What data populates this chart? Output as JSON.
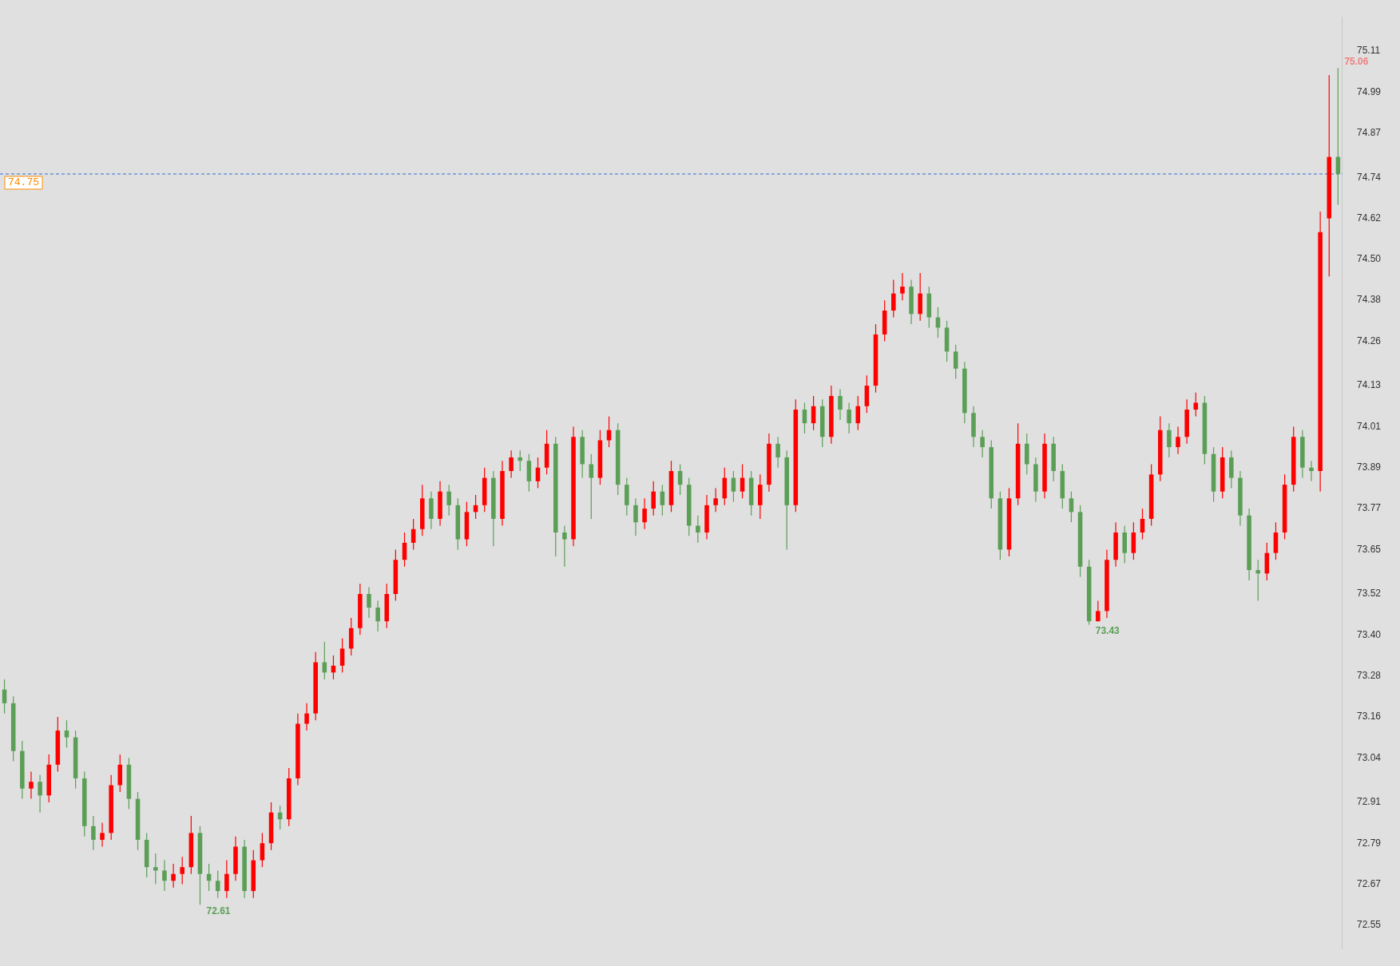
{
  "chart_data": {
    "type": "candlestick",
    "categories": [
      null,
      null,
      null,
      null,
      null,
      null,
      null,
      null,
      null,
      null,
      null,
      null,
      null,
      null,
      null,
      null,
      null,
      null,
      null,
      null,
      null,
      null,
      null,
      null,
      null,
      null,
      null,
      null,
      null,
      null,
      null,
      null,
      null,
      null,
      null,
      null,
      null,
      null,
      null,
      null,
      null,
      null,
      null,
      null,
      null,
      null,
      null,
      null,
      null,
      null,
      null,
      null,
      null,
      null,
      null,
      null,
      null,
      null,
      null,
      null,
      null,
      null,
      null,
      null,
      null,
      null,
      null,
      null,
      null,
      null,
      null,
      null,
      null,
      null,
      null,
      null,
      null,
      null,
      null,
      null,
      null,
      null,
      null,
      null,
      null,
      null,
      null,
      null,
      null,
      null,
      null,
      null,
      null,
      null,
      null,
      null,
      null,
      null,
      null,
      null,
      null,
      null,
      null,
      null,
      null,
      null,
      null,
      null,
      null,
      null,
      null,
      null,
      null,
      null,
      null,
      null,
      null,
      null,
      null,
      null,
      null,
      null,
      null,
      null,
      null,
      null,
      null,
      null,
      null,
      null,
      null,
      null,
      null,
      null,
      null,
      null,
      null,
      null,
      null,
      null,
      null,
      null,
      null,
      null,
      null,
      null,
      null,
      null,
      null,
      null,
      null
    ],
    "ohlc": [
      [
        73.24,
        73.27,
        73.17,
        73.2
      ],
      [
        73.2,
        73.22,
        73.03,
        73.06
      ],
      [
        73.06,
        73.09,
        72.92,
        72.95
      ],
      [
        72.95,
        73.0,
        72.92,
        72.97
      ],
      [
        72.97,
        72.99,
        72.88,
        72.93
      ],
      [
        72.93,
        73.05,
        72.91,
        73.02
      ],
      [
        73.02,
        73.16,
        73.0,
        73.12
      ],
      [
        73.12,
        73.15,
        73.07,
        73.1
      ],
      [
        73.1,
        73.12,
        72.95,
        72.98
      ],
      [
        72.98,
        73.0,
        72.81,
        72.84
      ],
      [
        72.84,
        72.87,
        72.77,
        72.8
      ],
      [
        72.8,
        72.85,
        72.78,
        72.82
      ],
      [
        72.82,
        72.99,
        72.8,
        72.96
      ],
      [
        72.96,
        73.05,
        72.94,
        73.02
      ],
      [
        73.02,
        73.04,
        72.89,
        72.92
      ],
      [
        72.92,
        72.94,
        72.77,
        72.8
      ],
      [
        72.8,
        72.82,
        72.69,
        72.72
      ],
      [
        72.72,
        72.76,
        72.67,
        72.71
      ],
      [
        72.71,
        72.74,
        72.65,
        72.68
      ],
      [
        72.68,
        72.73,
        72.66,
        72.7
      ],
      [
        72.7,
        72.75,
        72.67,
        72.72
      ],
      [
        72.72,
        72.87,
        72.7,
        72.82
      ],
      [
        72.82,
        72.84,
        72.61,
        72.7
      ],
      [
        72.7,
        72.73,
        72.65,
        72.68
      ],
      [
        72.68,
        72.71,
        72.63,
        72.65
      ],
      [
        72.65,
        72.74,
        72.63,
        72.7
      ],
      [
        72.7,
        72.81,
        72.68,
        72.78
      ],
      [
        72.78,
        72.8,
        72.63,
        72.65
      ],
      [
        72.65,
        72.77,
        72.63,
        72.74
      ],
      [
        72.74,
        72.82,
        72.72,
        72.79
      ],
      [
        72.79,
        72.91,
        72.77,
        72.88
      ],
      [
        72.88,
        72.9,
        72.83,
        72.86
      ],
      [
        72.86,
        73.01,
        72.84,
        72.98
      ],
      [
        72.98,
        73.17,
        72.96,
        73.14
      ],
      [
        73.14,
        73.2,
        73.12,
        73.17
      ],
      [
        73.17,
        73.35,
        73.15,
        73.32
      ],
      [
        73.32,
        73.38,
        73.27,
        73.29
      ],
      [
        73.29,
        73.34,
        73.27,
        73.31
      ],
      [
        73.31,
        73.39,
        73.29,
        73.36
      ],
      [
        73.36,
        73.45,
        73.34,
        73.42
      ],
      [
        73.42,
        73.55,
        73.4,
        73.52
      ],
      [
        73.52,
        73.54,
        73.45,
        73.48
      ],
      [
        73.48,
        73.5,
        73.41,
        73.44
      ],
      [
        73.44,
        73.55,
        73.42,
        73.52
      ],
      [
        73.52,
        73.65,
        73.5,
        73.62
      ],
      [
        73.62,
        73.7,
        73.6,
        73.67
      ],
      [
        73.67,
        73.74,
        73.65,
        73.71
      ],
      [
        73.71,
        73.84,
        73.69,
        73.8
      ],
      [
        73.8,
        73.82,
        73.71,
        73.74
      ],
      [
        73.74,
        73.85,
        73.72,
        73.82
      ],
      [
        73.82,
        73.84,
        73.75,
        73.78
      ],
      [
        73.78,
        73.8,
        73.65,
        73.68
      ],
      [
        73.68,
        73.79,
        73.66,
        73.76
      ],
      [
        73.76,
        73.81,
        73.74,
        73.78
      ],
      [
        73.78,
        73.89,
        73.76,
        73.86
      ],
      [
        73.86,
        73.88,
        73.66,
        73.74
      ],
      [
        73.74,
        73.91,
        73.72,
        73.88
      ],
      [
        73.88,
        73.94,
        73.86,
        73.92
      ],
      [
        73.92,
        73.94,
        73.88,
        73.91
      ],
      [
        73.91,
        73.93,
        73.82,
        73.85
      ],
      [
        73.85,
        73.92,
        73.83,
        73.89
      ],
      [
        73.89,
        74.0,
        73.87,
        73.96
      ],
      [
        73.96,
        73.98,
        73.63,
        73.7
      ],
      [
        73.7,
        73.72,
        73.6,
        73.68
      ],
      [
        73.68,
        74.01,
        73.66,
        73.98
      ],
      [
        73.98,
        74.0,
        73.86,
        73.9
      ],
      [
        73.9,
        73.93,
        73.74,
        73.86
      ],
      [
        73.86,
        74.0,
        73.84,
        73.97
      ],
      [
        73.97,
        74.04,
        73.95,
        74.0
      ],
      [
        74.0,
        74.02,
        73.81,
        73.84
      ],
      [
        73.84,
        73.86,
        73.75,
        73.78
      ],
      [
        73.78,
        73.8,
        73.69,
        73.73
      ],
      [
        73.73,
        73.8,
        73.71,
        73.77
      ],
      [
        73.77,
        73.85,
        73.75,
        73.82
      ],
      [
        73.82,
        73.84,
        73.75,
        73.78
      ],
      [
        73.78,
        73.91,
        73.76,
        73.88
      ],
      [
        73.88,
        73.9,
        73.81,
        73.84
      ],
      [
        73.84,
        73.86,
        73.69,
        73.72
      ],
      [
        73.72,
        73.75,
        73.67,
        73.7
      ],
      [
        73.7,
        73.81,
        73.68,
        73.78
      ],
      [
        73.78,
        73.83,
        73.76,
        73.8
      ],
      [
        73.8,
        73.89,
        73.78,
        73.86
      ],
      [
        73.86,
        73.88,
        73.79,
        73.82
      ],
      [
        73.82,
        73.9,
        73.8,
        73.86
      ],
      [
        73.86,
        73.88,
        73.75,
        73.78
      ],
      [
        73.78,
        73.87,
        73.74,
        73.84
      ],
      [
        73.84,
        73.99,
        73.82,
        73.96
      ],
      [
        73.96,
        73.98,
        73.89,
        73.92
      ],
      [
        73.92,
        73.94,
        73.65,
        73.78
      ],
      [
        73.78,
        74.09,
        73.76,
        74.06
      ],
      [
        74.06,
        74.08,
        73.99,
        74.02
      ],
      [
        74.02,
        74.1,
        74.0,
        74.07
      ],
      [
        74.07,
        74.09,
        73.95,
        73.98
      ],
      [
        73.98,
        74.13,
        73.96,
        74.1
      ],
      [
        74.1,
        74.12,
        74.03,
        74.06
      ],
      [
        74.06,
        74.08,
        73.99,
        74.02
      ],
      [
        74.02,
        74.1,
        74.0,
        74.07
      ],
      [
        74.07,
        74.16,
        74.05,
        74.13
      ],
      [
        74.13,
        74.31,
        74.11,
        74.28
      ],
      [
        74.28,
        74.38,
        74.26,
        74.35
      ],
      [
        74.35,
        74.44,
        74.33,
        74.4
      ],
      [
        74.4,
        74.46,
        74.38,
        74.42
      ],
      [
        74.42,
        74.44,
        74.31,
        74.34
      ],
      [
        74.34,
        74.46,
        74.32,
        74.4
      ],
      [
        74.4,
        74.42,
        74.3,
        74.33
      ],
      [
        74.33,
        74.36,
        74.27,
        74.3
      ],
      [
        74.3,
        74.32,
        74.2,
        74.23
      ],
      [
        74.23,
        74.25,
        74.15,
        74.18
      ],
      [
        74.18,
        74.2,
        74.02,
        74.05
      ],
      [
        74.05,
        74.07,
        73.95,
        73.98
      ],
      [
        73.98,
        74.0,
        73.92,
        73.95
      ],
      [
        73.95,
        73.97,
        73.77,
        73.8
      ],
      [
        73.8,
        73.82,
        73.62,
        73.65
      ],
      [
        73.65,
        73.83,
        73.63,
        73.8
      ],
      [
        73.8,
        74.02,
        73.78,
        73.96
      ],
      [
        73.96,
        73.99,
        73.87,
        73.9
      ],
      [
        73.9,
        73.92,
        73.79,
        73.82
      ],
      [
        73.82,
        73.99,
        73.8,
        73.96
      ],
      [
        73.96,
        73.98,
        73.85,
        73.88
      ],
      [
        73.88,
        73.9,
        73.77,
        73.8
      ],
      [
        73.8,
        73.82,
        73.73,
        73.76
      ],
      [
        73.76,
        73.78,
        73.57,
        73.6
      ],
      [
        73.6,
        73.62,
        73.43,
        73.44
      ],
      [
        73.44,
        73.5,
        73.44,
        73.47
      ],
      [
        73.47,
        73.65,
        73.45,
        73.62
      ],
      [
        73.62,
        73.73,
        73.6,
        73.7
      ],
      [
        73.7,
        73.72,
        73.61,
        73.64
      ],
      [
        73.64,
        73.73,
        73.62,
        73.7
      ],
      [
        73.7,
        73.77,
        73.68,
        73.74
      ],
      [
        73.74,
        73.9,
        73.72,
        73.87
      ],
      [
        73.87,
        74.04,
        73.85,
        74.0
      ],
      [
        74.0,
        74.02,
        73.92,
        73.95
      ],
      [
        73.95,
        74.01,
        73.93,
        73.98
      ],
      [
        73.98,
        74.09,
        73.96,
        74.06
      ],
      [
        74.06,
        74.11,
        74.04,
        74.08
      ],
      [
        74.08,
        74.1,
        73.9,
        73.93
      ],
      [
        73.93,
        73.95,
        73.79,
        73.82
      ],
      [
        73.82,
        73.95,
        73.8,
        73.92
      ],
      [
        73.92,
        73.94,
        73.83,
        73.86
      ],
      [
        73.86,
        73.88,
        73.72,
        73.75
      ],
      [
        73.75,
        73.77,
        73.56,
        73.59
      ],
      [
        73.59,
        73.62,
        73.5,
        73.58
      ],
      [
        73.58,
        73.67,
        73.56,
        73.64
      ],
      [
        73.64,
        73.73,
        73.62,
        73.7
      ],
      [
        73.7,
        73.87,
        73.68,
        73.84
      ],
      [
        73.84,
        74.01,
        73.82,
        73.98
      ],
      [
        73.98,
        74.0,
        73.86,
        73.89
      ],
      [
        73.89,
        73.91,
        73.85,
        73.88
      ],
      [
        73.88,
        74.64,
        73.82,
        74.58
      ],
      [
        74.62,
        75.04,
        74.45,
        74.8
      ],
      [
        74.8,
        75.06,
        74.66,
        74.75
      ]
    ],
    "colors": [
      "#5b9f57",
      "#5b9f57",
      "#5b9f57",
      "#ff0000",
      "#5b9f57",
      "#ff0000",
      "#ff0000",
      "#5b9f57",
      "#5b9f57",
      "#5b9f57",
      "#5b9f57",
      "#ff0000",
      "#ff0000",
      "#ff0000",
      "#5b9f57",
      "#5b9f57",
      "#5b9f57",
      "#5b9f57",
      "#5b9f57",
      "#ff0000",
      "#ff0000",
      "#ff0000",
      "#5b9f57",
      "#5b9f57",
      "#5b9f57",
      "#ff0000",
      "#ff0000",
      "#5b9f57",
      "#ff0000",
      "#ff0000",
      "#ff0000",
      "#5b9f57",
      "#ff0000",
      "#ff0000",
      "#ff0000",
      "#ff0000",
      "#5b9f57",
      "#ff0000",
      "#ff0000",
      "#ff0000",
      "#ff0000",
      "#5b9f57",
      "#5b9f57",
      "#ff0000",
      "#ff0000",
      "#ff0000",
      "#ff0000",
      "#ff0000",
      "#5b9f57",
      "#ff0000",
      "#5b9f57",
      "#5b9f57",
      "#ff0000",
      "#ff0000",
      "#ff0000",
      "#5b9f57",
      "#ff0000",
      "#ff0000",
      "#5b9f57",
      "#5b9f57",
      "#ff0000",
      "#ff0000",
      "#5b9f57",
      "#5b9f57",
      "#ff0000",
      "#5b9f57",
      "#5b9f57",
      "#ff0000",
      "#ff0000",
      "#5b9f57",
      "#5b9f57",
      "#5b9f57",
      "#ff0000",
      "#ff0000",
      "#5b9f57",
      "#ff0000",
      "#5b9f57",
      "#5b9f57",
      "#5b9f57",
      "#ff0000",
      "#ff0000",
      "#ff0000",
      "#5b9f57",
      "#ff0000",
      "#5b9f57",
      "#ff0000",
      "#ff0000",
      "#5b9f57",
      "#5b9f57",
      "#ff0000",
      "#5b9f57",
      "#ff0000",
      "#5b9f57",
      "#ff0000",
      "#5b9f57",
      "#5b9f57",
      "#ff0000",
      "#ff0000",
      "#ff0000",
      "#ff0000",
      "#ff0000",
      "#ff0000",
      "#5b9f57",
      "#ff0000",
      "#5b9f57",
      "#5b9f57",
      "#5b9f57",
      "#5b9f57",
      "#5b9f57",
      "#5b9f57",
      "#5b9f57",
      "#5b9f57",
      "#5b9f57",
      "#ff0000",
      "#ff0000",
      "#5b9f57",
      "#5b9f57",
      "#ff0000",
      "#5b9f57",
      "#5b9f57",
      "#5b9f57",
      "#5b9f57",
      "#5b9f57",
      "#ff0000",
      "#ff0000",
      "#ff0000",
      "#5b9f57",
      "#ff0000",
      "#ff0000",
      "#ff0000",
      "#ff0000",
      "#5b9f57",
      "#ff0000",
      "#ff0000",
      "#ff0000",
      "#5b9f57",
      "#5b9f57",
      "#ff0000",
      "#5b9f57",
      "#5b9f57",
      "#5b9f57",
      "#5b9f57",
      "#ff0000",
      "#ff0000",
      "#ff0000",
      "#ff0000",
      "#5b9f57",
      "#5b9f57",
      "#ff0000",
      "#ff0000",
      "#5b9f57"
    ],
    "ylim": [
      72.48,
      75.21
    ],
    "yticks": [
      72.55,
      72.67,
      72.79,
      72.91,
      73.04,
      73.16,
      73.28,
      {
        "value": 73.4,
        "label": "73.40"
      },
      73.52,
      73.65,
      73.77,
      73.89,
      74.01,
      74.13,
      74.26,
      74.38,
      {
        "value": 74.5,
        "label": "74.50"
      },
      74.62,
      74.74,
      74.87,
      74.99,
      75.11
    ],
    "tick_labels": "y",
    "ref_lines": [
      {
        "axis": "y",
        "value": 74.75,
        "label": "74.75",
        "color": "#2f6fd6",
        "line_style": "dashed"
      }
    ],
    "annotations": [
      "75.06",
      "73.43",
      "72.61"
    ]
  }
}
